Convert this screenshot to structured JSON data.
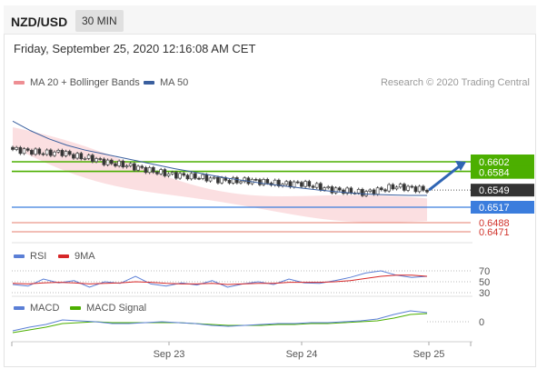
{
  "header": {
    "symbol": "NZD/USD",
    "timeframe": "30 MIN"
  },
  "datetime": "Friday, September 25, 2020 12:16:08 AM CET",
  "legend": {
    "ma20": "MA 20 + Bollinger Bands",
    "ma50": "MA 50",
    "research": "Research © 2020 Trading Central",
    "rsi": "RSI",
    "rsi_ma": "9MA",
    "macd": "MACD",
    "macd_signal": "MACD Signal"
  },
  "colors": {
    "candle_up": "#ffffff",
    "candle_down": "#333333",
    "bollinger": "#f7c5c8",
    "ma20": "#ee8e93",
    "ma50": "#3a5f9e",
    "resistance": "#4caf00",
    "pivot": "#3b7ddd",
    "support": "#e57c6c",
    "last": "#333333",
    "rsi": "#5b7fd6",
    "rsi_ma": "#d62728",
    "macd": "#5b7fd6",
    "macd_signal": "#4caf00"
  },
  "chart_data": {
    "type": "line",
    "price": {
      "x_labels": [
        "Sep 23",
        "Sep 24",
        "Sep 25"
      ],
      "close_series": [
        0.6625,
        0.6622,
        0.6618,
        0.662,
        0.6612,
        0.6608,
        0.66,
        0.6596,
        0.659,
        0.6583,
        0.6578,
        0.6575,
        0.6572,
        0.6568,
        0.6566,
        0.6567,
        0.6563,
        0.656,
        0.6562,
        0.6556,
        0.655,
        0.6547,
        0.6544,
        0.6549,
        0.6556,
        0.6553,
        0.6549
      ],
      "ma50_series": [
        0.6678,
        0.666,
        0.6645,
        0.6633,
        0.6624,
        0.6617,
        0.661,
        0.6603,
        0.6596,
        0.6589,
        0.6583,
        0.6577,
        0.6571,
        0.6566,
        0.6561,
        0.6557,
        0.6553,
        0.6549,
        0.6546,
        0.6543,
        0.6541,
        0.654,
        0.6539,
        0.6539
      ],
      "levels": [
        {
          "label": "0.6602",
          "value": 0.6602,
          "kind": "resistance"
        },
        {
          "label": "0.6584",
          "value": 0.6584,
          "kind": "resistance"
        },
        {
          "label": "0.6549",
          "value": 0.6549,
          "kind": "last"
        },
        {
          "label": "0.6517",
          "value": 0.6517,
          "kind": "pivot"
        },
        {
          "label": "0.6488",
          "value": 0.6488,
          "kind": "support"
        },
        {
          "label": "0.6471",
          "value": 0.6471,
          "kind": "support"
        }
      ],
      "target_arrow": {
        "from": 0.6549,
        "to": 0.6602
      }
    },
    "rsi": {
      "levels": [
        "70",
        "50",
        "30"
      ],
      "level_values": [
        70,
        50,
        30
      ],
      "rsi_series": [
        45,
        42,
        55,
        48,
        52,
        40,
        50,
        47,
        60,
        46,
        42,
        48,
        44,
        52,
        40,
        46,
        50,
        45,
        55,
        48,
        47,
        52,
        58,
        66,
        70,
        62,
        58,
        60
      ],
      "ma_series": [
        47,
        46,
        48,
        49,
        48,
        46,
        47,
        48,
        50,
        49,
        47,
        46,
        46,
        47,
        45,
        46,
        47,
        47,
        49,
        49,
        49,
        50,
        52,
        56,
        60,
        62,
        62,
        60
      ]
    },
    "macd": {
      "levels": [
        "0"
      ],
      "macd_series": [
        -0.001,
        -0.0006,
        -0.0003,
        0.0002,
        0.0001,
        0.0,
        -0.0002,
        -0.0002,
        -0.0001,
        0.0,
        -0.0001,
        -0.0002,
        -0.0004,
        -0.0005,
        -0.0004,
        -0.0003,
        -0.0002,
        -0.0002,
        -0.0001,
        -0.0001,
        0.0,
        0.0001,
        0.0003,
        0.0008,
        0.0012,
        0.001
      ],
      "signal_series": [
        -0.0012,
        -0.0009,
        -0.0006,
        -0.0002,
        -0.0001,
        0.0,
        -0.0001,
        -0.0001,
        -0.0001,
        -0.0001,
        -0.0001,
        -0.0002,
        -0.0003,
        -0.0004,
        -0.0004,
        -0.0004,
        -0.0003,
        -0.0003,
        -0.0002,
        -0.0002,
        -0.0001,
        0.0,
        0.0001,
        0.0004,
        0.0008,
        0.0009
      ]
    }
  }
}
